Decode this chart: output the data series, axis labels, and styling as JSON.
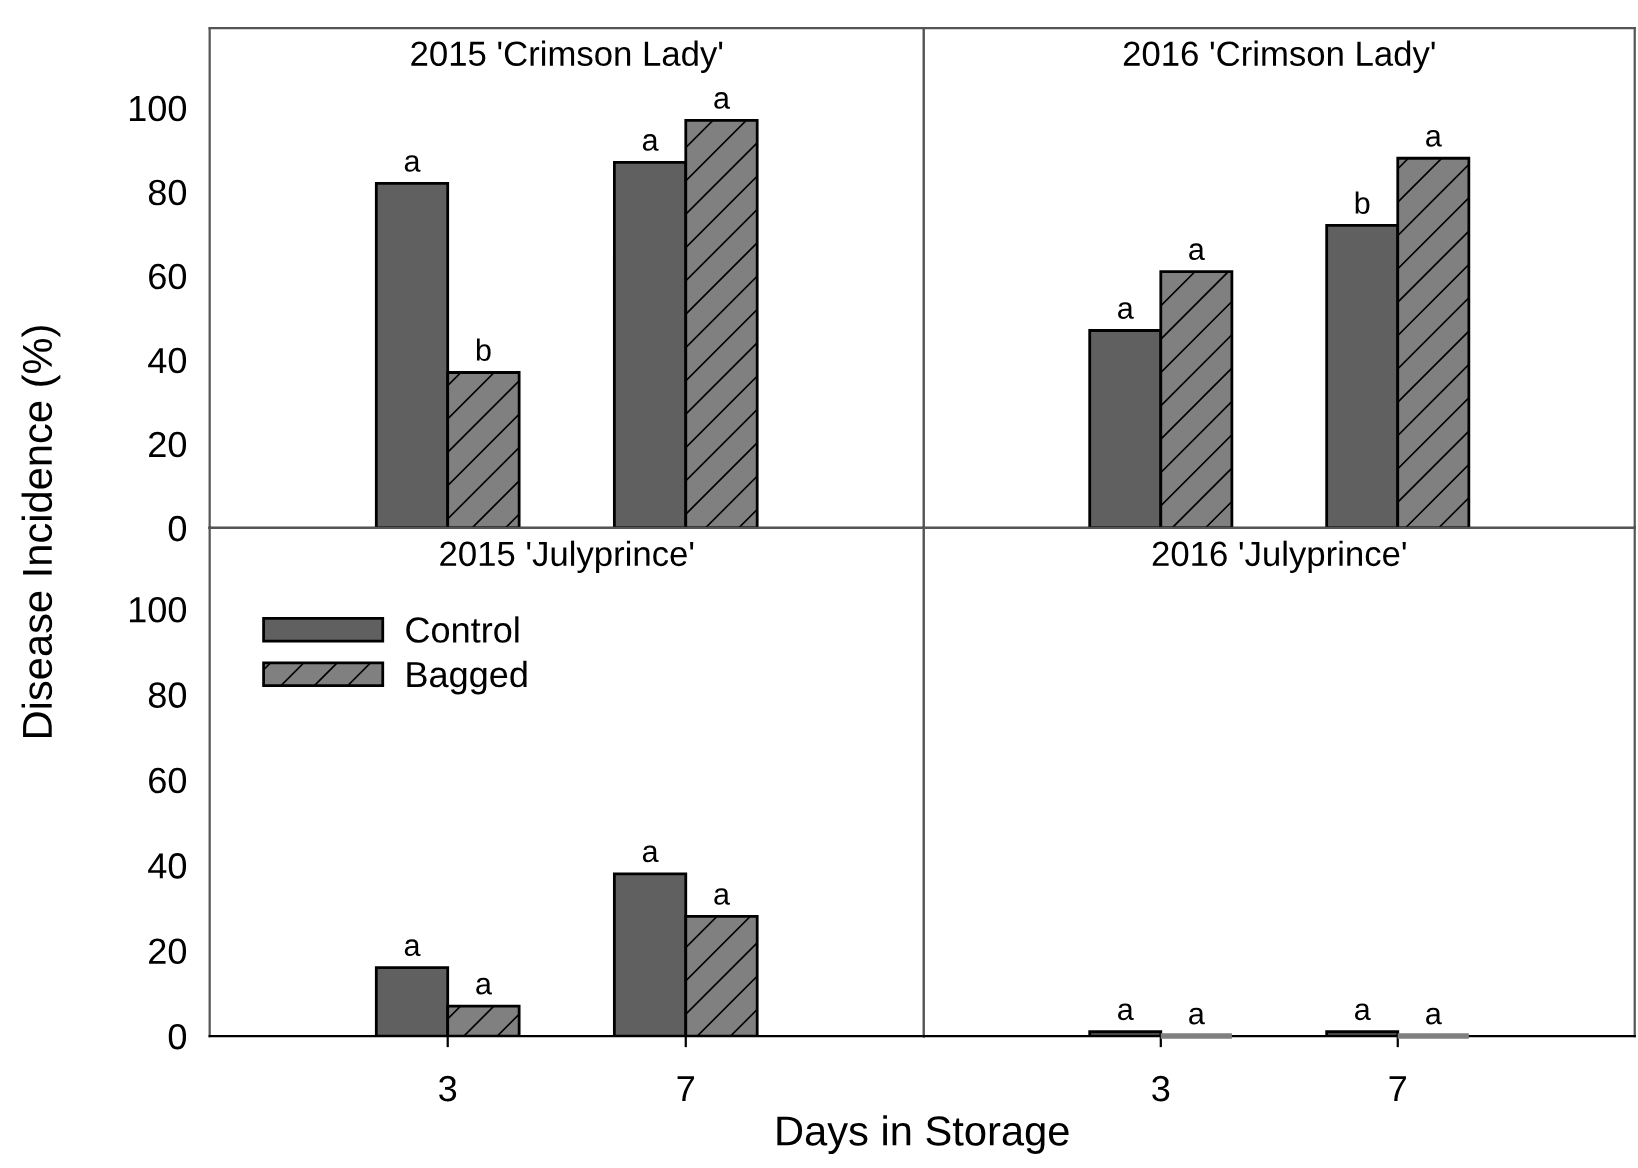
{
  "chart_data": [
    {
      "type": "bar",
      "title": "2015 'Crimson Lady'",
      "ylabel": "Disease Incidence (%)",
      "categories": [
        "3",
        "7"
      ],
      "ylim": [
        0,
        119
      ],
      "yticks": [
        0,
        20,
        40,
        60,
        80,
        100
      ],
      "tick_labels": "y",
      "grid": false,
      "legend": false,
      "series": [
        {
          "color": "#606060",
          "values": [
            82,
            87
          ],
          "value_labels": [
            "a",
            "a"
          ]
        },
        {
          "color": "#808080",
          "values": [
            37,
            97
          ],
          "value_labels": [
            "b",
            "a"
          ]
        }
      ]
    },
    {
      "type": "bar",
      "title": "2016 'Crimson Lady'",
      "categories": [
        "3",
        "7"
      ],
      "ylim": [
        0,
        119
      ],
      "yticks": [
        0,
        20,
        40,
        60,
        80,
        100
      ],
      "tick_labels": false,
      "grid": false,
      "legend": false,
      "series": [
        {
          "color": "#606060",
          "values": [
            47,
            72
          ],
          "value_labels": [
            "a",
            "b"
          ]
        },
        {
          "color": "#808080",
          "values": [
            61,
            88
          ],
          "value_labels": [
            "a",
            "a"
          ]
        }
      ]
    },
    {
      "type": "bar",
      "title": "2015 'Julyprince'",
      "xlabel": "Days in Storage",
      "categories": [
        "3",
        "7"
      ],
      "ylim": [
        0,
        119
      ],
      "yticks": [
        0,
        20,
        40,
        60,
        80,
        100
      ],
      "grid": false,
      "legend": "top left",
      "series": [
        {
          "name": "Control",
          "color": "#606060",
          "values": [
            16,
            38
          ],
          "value_labels": [
            "a",
            "a"
          ]
        },
        {
          "name": "Bagged",
          "color": "#808080",
          "values": [
            7,
            28
          ],
          "value_labels": [
            "a",
            "a"
          ]
        }
      ]
    },
    {
      "type": "bar",
      "title": "2016 'Julyprince'",
      "categories": [
        "3",
        "7"
      ],
      "ylim": [
        0,
        119
      ],
      "yticks": [
        0,
        20,
        40,
        60,
        80,
        100
      ],
      "tick_labels": "x",
      "grid": false,
      "legend": false,
      "series": [
        {
          "color": "#606060",
          "values": [
            1,
            1
          ],
          "value_labels": [
            "a",
            "a"
          ]
        },
        {
          "color": "#808080",
          "values": [
            0,
            0
          ],
          "value_labels": [
            "a",
            "a"
          ]
        }
      ]
    }
  ]
}
